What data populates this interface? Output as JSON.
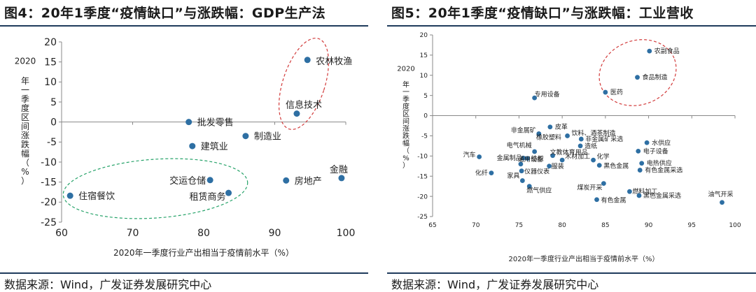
{
  "sources": {
    "left": "数据来源：Wind，广发证券发展研究中心",
    "right": "数据来源：Wind，广发证券发展研究中心"
  },
  "colors": {
    "marker": "#2e6fa3",
    "ellipse_red": "#d23a3a",
    "ellipse_green": "#27a36a",
    "rule": "#1f3b5c"
  },
  "chart_data": [
    {
      "type": "scatter",
      "title": "图4：20年1季度“疫情缺口”与涨跌幅：GDP生产法",
      "xlabel": "2020年一季度行业产出相当于疫情前水平（%）",
      "ylabel": "2020年一季度区间涨跌幅（%）",
      "xlim": [
        60,
        100
      ],
      "ylim": [
        -25,
        20
      ],
      "xticks": [
        60,
        70,
        80,
        90,
        100
      ],
      "yticks": [
        -25,
        -20,
        -15,
        -10,
        -5,
        0,
        5,
        10,
        15,
        20
      ],
      "grid": false,
      "points": [
        {
          "label": "农林牧渔",
          "x": 94.6,
          "y": 15.5
        },
        {
          "label": "信息技术",
          "x": 93.1,
          "y": 2.1
        },
        {
          "label": "批发零售",
          "x": 77.9,
          "y": 0.0
        },
        {
          "label": "制造业",
          "x": 85.9,
          "y": -3.5
        },
        {
          "label": "建筑业",
          "x": 78.4,
          "y": -6.0
        },
        {
          "label": "交运仓储",
          "x": 80.9,
          "y": -14.5
        },
        {
          "label": "房地产",
          "x": 91.6,
          "y": -14.6
        },
        {
          "label": "金融",
          "x": 99.4,
          "y": -14.0
        },
        {
          "label": "住宿餐饮",
          "x": 61.2,
          "y": -18.4
        },
        {
          "label": "租赁商务",
          "x": 83.5,
          "y": -17.7
        }
      ]
    },
    {
      "type": "scatter",
      "title": "图5：20年1季度“疫情缺口”与涨跌幅：工业营收",
      "xlabel": "2020年一季度行业产出相当于疫情前水平（%）",
      "ylabel": "2020年一季度区间涨跌幅（%）",
      "xlim": [
        65,
        100
      ],
      "ylim": [
        -25,
        20
      ],
      "xticks": [
        65,
        70,
        75,
        80,
        85,
        90,
        95,
        100
      ],
      "yticks": [
        -25,
        -20,
        -15,
        -10,
        -5,
        0,
        5,
        10,
        15,
        20
      ],
      "grid": false,
      "points": [
        {
          "label": "农副食品",
          "x": 90.1,
          "y": 16.0
        },
        {
          "label": "食品制造",
          "x": 88.7,
          "y": 9.5
        },
        {
          "label": "医药",
          "x": 85.0,
          "y": 5.8
        },
        {
          "label": "专用设备",
          "x": 76.8,
          "y": 4.4
        },
        {
          "label": "皮革",
          "x": 78.6,
          "y": -2.8
        },
        {
          "label": "非金属矿",
          "x": 77.3,
          "y": -4.5
        },
        {
          "label": "橡胶塑料",
          "x": 77.3,
          "y": -4.5
        },
        {
          "label": "饮料、酒茶制造",
          "x": 80.6,
          "y": -5.0
        },
        {
          "label": "非金属矿采选",
          "x": 82.2,
          "y": -5.8
        },
        {
          "label": "造纸",
          "x": 82.1,
          "y": -7.5
        },
        {
          "label": "水供应",
          "x": 89.8,
          "y": -6.7
        },
        {
          "label": "电子设备",
          "x": 88.8,
          "y": -8.8
        },
        {
          "label": "电气机械",
          "x": 76.8,
          "y": -8.9
        },
        {
          "label": "文教体育用品",
          "x": 78.9,
          "y": -9.9
        },
        {
          "label": "金属制品",
          "x": 75.5,
          "y": -10.5
        },
        {
          "label": "纺织",
          "x": 76.0,
          "y": -10.6
        },
        {
          "label": "木材加工",
          "x": 80.0,
          "y": -11.0
        },
        {
          "label": "化学",
          "x": 83.6,
          "y": -11.0
        },
        {
          "label": "电热供应",
          "x": 89.2,
          "y": -11.8
        },
        {
          "label": "通用设备",
          "x": 75.2,
          "y": -12.0
        },
        {
          "label": "服装",
          "x": 78.5,
          "y": -12.5
        },
        {
          "label": "黑色金属",
          "x": 84.3,
          "y": -12.3
        },
        {
          "label": "有色金属采选",
          "x": 89.0,
          "y": -13.5
        },
        {
          "label": "汽车",
          "x": 70.4,
          "y": -10.2
        },
        {
          "label": "仪器仪表",
          "x": 75.3,
          "y": -13.7
        },
        {
          "label": "化纤",
          "x": 71.8,
          "y": -14.2
        },
        {
          "label": "家具",
          "x": 75.4,
          "y": -16.1
        },
        {
          "label": "燃气供应",
          "x": 76.2,
          "y": -17.5
        },
        {
          "label": "煤炭开采",
          "x": 84.8,
          "y": -16.8
        },
        {
          "label": "燃料加工",
          "x": 87.8,
          "y": -18.8
        },
        {
          "label": "黑色金属采选",
          "x": 88.9,
          "y": -19.8
        },
        {
          "label": "有色金属",
          "x": 84.0,
          "y": -20.8
        },
        {
          "label": "油气开采",
          "x": 98.5,
          "y": -21.5
        }
      ]
    }
  ]
}
